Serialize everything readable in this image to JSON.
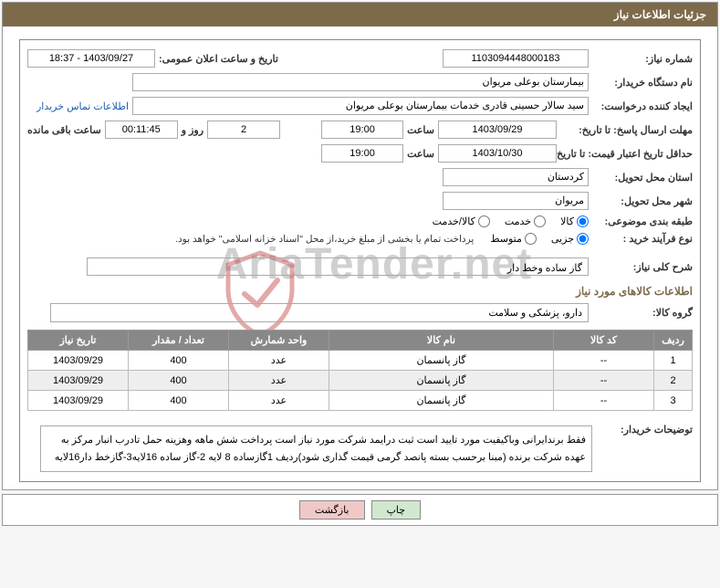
{
  "header": {
    "title": "جزئیات اطلاعات نیاز"
  },
  "fields": {
    "need_no_label": "شماره نیاز:",
    "need_no": "1103094448000183",
    "pub_datetime_label": "تاریخ و ساعت اعلان عمومی:",
    "pub_datetime": "1403/09/27 - 18:37",
    "buyer_org_label": "نام دستگاه خریدار:",
    "buyer_org": "بیمارستان بوعلی مریوان",
    "requester_label": "ایجاد کننده درخواست:",
    "requester": "سید سالار حسینی قادری خدمات بیمارستان بوعلی مریوان",
    "contact_link": "اطلاعات تماس خریدار",
    "deadline_label": "مهلت ارسال پاسخ: تا تاریخ:",
    "deadline_date": "1403/09/29",
    "time_label": "ساعت",
    "deadline_time": "19:00",
    "days": "2",
    "days_label": "روز و",
    "hms": "00:11:45",
    "remaining_label": "ساعت باقی مانده",
    "validity_label": "حداقل تاریخ اعتبار قیمت: تا تاریخ:",
    "validity_date": "1403/10/30",
    "validity_time": "19:00",
    "province_label": "استان محل تحویل:",
    "province": "کردستان",
    "city_label": "شهر محل تحویل:",
    "city": "مریوان",
    "subject_class_label": "طبقه بندی موضوعی:",
    "radio_goods": "کالا",
    "radio_service": "خدمت",
    "radio_goods_service": "کالا/خدمت",
    "process_label": "نوع فرآیند خرید :",
    "radio_partial": "جزیی",
    "radio_medium": "متوسط",
    "process_note": "پرداخت تمام یا بخشی از مبلغ خرید،از محل \"اسناد خزانه اسلامی\" خواهد بود.",
    "overview_label": "شرح کلی نیاز:",
    "overview": "گاز ساده وخط دار",
    "goods_info_title": "اطلاعات کالاهای مورد نیاز",
    "group_label": "گروه کالا:",
    "group": "دارو، پزشکی و سلامت",
    "buyer_notes_label": "توضیحات خریدار:",
    "buyer_notes": "فقط برندایرانی وباکیفیت مورد تایید است ثبت درایمد شرکت  مورد نیاز است پرداخت شش ماهه وهزینه حمل تادرب انبار مرکز به عهده شرکت برنده (مبنا برحسب بسته پانصد گرمی قیمت گذاری شود)ردیف 1گازساده 8 لایه 2-گاز ساده 16لایه3-گازخط دار16لایه"
  },
  "table": {
    "headers": {
      "row": "ردیف",
      "code": "کد کالا",
      "name": "نام کالا",
      "unit": "واحد شمارش",
      "qty": "تعداد / مقدار",
      "date": "تاریخ نیاز"
    },
    "rows": [
      {
        "row": "1",
        "code": "--",
        "name": "گاز پانسمان",
        "unit": "عدد",
        "qty": "400",
        "date": "1403/09/29"
      },
      {
        "row": "2",
        "code": "--",
        "name": "گاز پانسمان",
        "unit": "عدد",
        "qty": "400",
        "date": "1403/09/29"
      },
      {
        "row": "3",
        "code": "--",
        "name": "گاز پانسمان",
        "unit": "عدد",
        "qty": "400",
        "date": "1403/09/29"
      }
    ],
    "col_widths": {
      "row": "42px",
      "code": "110px",
      "name": "auto",
      "unit": "110px",
      "qty": "110px",
      "date": "110px"
    }
  },
  "buttons": {
    "print": "چاپ",
    "back": "بازگشت"
  },
  "watermark": "AriaTender.net"
}
